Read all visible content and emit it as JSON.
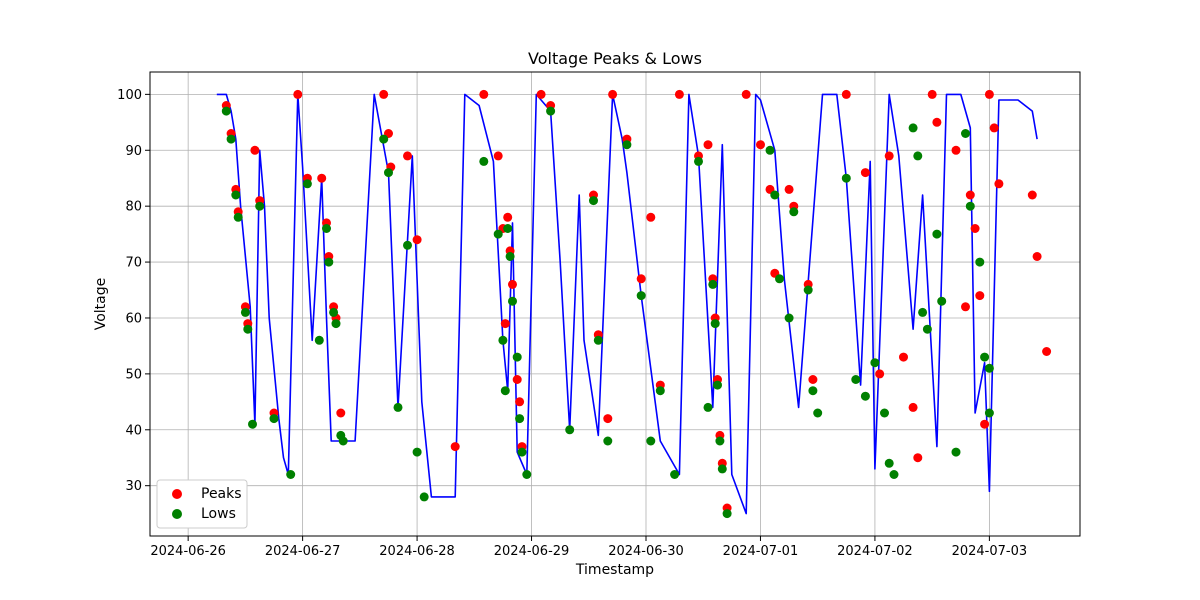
{
  "chart_data": {
    "type": "line",
    "title": "Voltage Peaks & Lows",
    "xlabel": "Timestamp",
    "ylabel": "Voltage",
    "xlim": [
      "2024-06-25T16:00",
      "2024-07-03T19:00"
    ],
    "ylim": [
      21,
      104
    ],
    "grid": true,
    "legend_position": "bottom-left",
    "x_ticks": [
      "2024-06-26",
      "2024-06-27",
      "2024-06-28",
      "2024-06-29",
      "2024-06-30",
      "2024-07-01",
      "2024-07-02",
      "2024-07-03"
    ],
    "y_ticks": [
      30,
      40,
      50,
      60,
      70,
      80,
      90,
      100
    ],
    "line": {
      "color": "#0000ff",
      "x": [
        "2024-06-26T06:00",
        "2024-06-26T08:00",
        "2024-06-26T09:00",
        "2024-06-26T10:00",
        "2024-06-26T11:00",
        "2024-06-26T13:00",
        "2024-06-26T14:00",
        "2024-06-26T15:00",
        "2024-06-26T16:00",
        "2024-06-26T17:00",
        "2024-06-26T19:00",
        "2024-06-26T20:00",
        "2024-06-26T21:00",
        "2024-06-26T23:00",
        "2024-06-27T00:00",
        "2024-06-27T02:00",
        "2024-06-27T04:00",
        "2024-06-27T05:00",
        "2024-06-27T06:00",
        "2024-06-27T08:00",
        "2024-06-27T11:00",
        "2024-06-27T15:00",
        "2024-06-27T18:00",
        "2024-06-27T20:00",
        "2024-06-27T23:00",
        "2024-06-28T01:00",
        "2024-06-28T03:00",
        "2024-06-28T08:00",
        "2024-06-28T10:00",
        "2024-06-28T13:00",
        "2024-06-28T16:00",
        "2024-06-28T18:00",
        "2024-06-28T19:00",
        "2024-06-28T20:00",
        "2024-06-28T21:00",
        "2024-06-28T23:00",
        "2024-06-29T01:00",
        "2024-06-29T04:00",
        "2024-06-29T06:00",
        "2024-06-29T07:00",
        "2024-06-29T08:00",
        "2024-06-29T10:00",
        "2024-06-29T11:00",
        "2024-06-29T14:00",
        "2024-06-29T17:00",
        "2024-06-29T19:00",
        "2024-06-29T20:00",
        "2024-06-29T23:00",
        "2024-06-30T03:00",
        "2024-06-30T07:00",
        "2024-06-30T09:00",
        "2024-06-30T11:00",
        "2024-06-30T14:00",
        "2024-06-30T16:00",
        "2024-06-30T18:00",
        "2024-06-30T21:00",
        "2024-06-30T23:00",
        "2024-07-01T00:00",
        "2024-07-01T03:00",
        "2024-07-01T05:00",
        "2024-07-01T08:00",
        "2024-07-01T13:00",
        "2024-07-01T16:00",
        "2024-07-01T18:00",
        "2024-07-01T21:00",
        "2024-07-01T23:00",
        "2024-07-02T00:00",
        "2024-07-02T03:00",
        "2024-07-02T05:00",
        "2024-07-02T08:00",
        "2024-07-02T10:00",
        "2024-07-02T13:00",
        "2024-07-02T15:00",
        "2024-07-02T18:00",
        "2024-07-02T20:00",
        "2024-07-02T21:00",
        "2024-07-02T23:00",
        "2024-07-03T00:00",
        "2024-07-03T02:00",
        "2024-07-03T06:00",
        "2024-07-03T09:00",
        "2024-07-03T10:00"
      ],
      "y": [
        100,
        100,
        97,
        92,
        80,
        62,
        41,
        90,
        80,
        60,
        42,
        35,
        32,
        100,
        87,
        56,
        85,
        60,
        38,
        38,
        38,
        100,
        86,
        44,
        89,
        45,
        28,
        28,
        100,
        98,
        88,
        56,
        47,
        77,
        36,
        32,
        100,
        97,
        70,
        55,
        40,
        82,
        56,
        39,
        100,
        92,
        86,
        64,
        38,
        32,
        100,
        89,
        44,
        91,
        32,
        25,
        100,
        99,
        90,
        67,
        44,
        100,
        100,
        85,
        48,
        88,
        33,
        100,
        89,
        58,
        82,
        37,
        100,
        100,
        94,
        43,
        52,
        29,
        99,
        99,
        97,
        92
      ]
    },
    "series": [
      {
        "name": "Peaks",
        "color": "#ff0000",
        "x": [
          "2024-06-26T08:00",
          "2024-06-26T09:00",
          "2024-06-26T10:00",
          "2024-06-26T10:30",
          "2024-06-26T12:00",
          "2024-06-26T12:30",
          "2024-06-26T14:00",
          "2024-06-26T15:00",
          "2024-06-26T18:00",
          "2024-06-26T23:00",
          "2024-06-27T01:00",
          "2024-06-27T04:00",
          "2024-06-27T05:00",
          "2024-06-27T05:30",
          "2024-06-27T06:30",
          "2024-06-27T07:00",
          "2024-06-27T08:00",
          "2024-06-27T17:00",
          "2024-06-27T18:00",
          "2024-06-27T18:30",
          "2024-06-27T22:00",
          "2024-06-28T00:00",
          "2024-06-28T08:00",
          "2024-06-28T14:00",
          "2024-06-28T17:00",
          "2024-06-28T18:00",
          "2024-06-28T18:30",
          "2024-06-28T19:00",
          "2024-06-28T19:30",
          "2024-06-28T20:00",
          "2024-06-28T21:00",
          "2024-06-28T21:30",
          "2024-06-28T22:00",
          "2024-06-29T02:00",
          "2024-06-29T04:00",
          "2024-06-29T13:00",
          "2024-06-29T14:00",
          "2024-06-29T16:00",
          "2024-06-29T17:00",
          "2024-06-29T20:00",
          "2024-06-29T23:00",
          "2024-06-30T01:00",
          "2024-06-30T03:00",
          "2024-06-30T07:00",
          "2024-06-30T11:00",
          "2024-06-30T13:00",
          "2024-06-30T14:00",
          "2024-06-30T14:30",
          "2024-06-30T15:00",
          "2024-06-30T15:30",
          "2024-06-30T16:00",
          "2024-06-30T17:00",
          "2024-06-30T21:00",
          "2024-07-01T00:00",
          "2024-07-01T02:00",
          "2024-07-01T03:00",
          "2024-07-01T06:00",
          "2024-07-01T07:00",
          "2024-07-01T10:00",
          "2024-07-01T11:00",
          "2024-07-01T18:00",
          "2024-07-01T22:00",
          "2024-07-02T01:00",
          "2024-07-02T03:00",
          "2024-07-02T06:00",
          "2024-07-02T08:00",
          "2024-07-02T09:00",
          "2024-07-02T12:00",
          "2024-07-02T13:00",
          "2024-07-02T17:00",
          "2024-07-02T19:00",
          "2024-07-02T20:00",
          "2024-07-02T21:00",
          "2024-07-02T22:00",
          "2024-07-02T23:00",
          "2024-07-03T00:00",
          "2024-07-03T01:00",
          "2024-07-03T02:00",
          "2024-07-03T09:00",
          "2024-07-03T10:00",
          "2024-07-03T12:00"
        ],
        "y": [
          98,
          93,
          83,
          79,
          62,
          59,
          90,
          81,
          43,
          100,
          85,
          85,
          77,
          71,
          62,
          60,
          43,
          100,
          93,
          87,
          89,
          74,
          37,
          100,
          89,
          76,
          59,
          78,
          72,
          66,
          49,
          45,
          37,
          100,
          98,
          82,
          57,
          42,
          100,
          92,
          67,
          78,
          48,
          100,
          89,
          91,
          67,
          60,
          49,
          39,
          34,
          26,
          100,
          91,
          83,
          68,
          83,
          80,
          66,
          49,
          100,
          86,
          50,
          89,
          53,
          44,
          35,
          100,
          95,
          90,
          62,
          82,
          76,
          64,
          41,
          100,
          94,
          84,
          82,
          71,
          54
        ]
      },
      {
        "name": "Lows",
        "color": "#008000",
        "x": [
          "2024-06-26T08:00",
          "2024-06-26T09:00",
          "2024-06-26T10:00",
          "2024-06-26T10:30",
          "2024-06-26T12:00",
          "2024-06-26T12:30",
          "2024-06-26T13:30",
          "2024-06-26T15:00",
          "2024-06-26T18:00",
          "2024-06-26T21:30",
          "2024-06-27T01:00",
          "2024-06-27T03:30",
          "2024-06-27T05:00",
          "2024-06-27T05:30",
          "2024-06-27T06:30",
          "2024-06-27T07:00",
          "2024-06-27T08:00",
          "2024-06-27T08:30",
          "2024-06-27T17:00",
          "2024-06-27T18:00",
          "2024-06-27T20:00",
          "2024-06-27T22:00",
          "2024-06-28T00:00",
          "2024-06-28T01:30",
          "2024-06-28T14:00",
          "2024-06-28T17:00",
          "2024-06-28T18:00",
          "2024-06-28T18:30",
          "2024-06-28T19:00",
          "2024-06-28T19:30",
          "2024-06-28T20:00",
          "2024-06-28T21:00",
          "2024-06-28T21:30",
          "2024-06-28T22:00",
          "2024-06-28T23:00",
          "2024-06-29T04:00",
          "2024-06-29T08:00",
          "2024-06-29T13:00",
          "2024-06-29T14:00",
          "2024-06-29T16:00",
          "2024-06-29T20:00",
          "2024-06-29T23:00",
          "2024-06-30T01:00",
          "2024-06-30T03:00",
          "2024-06-30T06:00",
          "2024-06-30T11:00",
          "2024-06-30T13:00",
          "2024-06-30T14:00",
          "2024-06-30T14:30",
          "2024-06-30T15:00",
          "2024-06-30T15:30",
          "2024-06-30T16:00",
          "2024-06-30T17:00",
          "2024-07-01T02:00",
          "2024-07-01T03:00",
          "2024-07-01T04:00",
          "2024-07-01T06:00",
          "2024-07-01T07:00",
          "2024-07-01T10:00",
          "2024-07-01T11:00",
          "2024-07-01T12:00",
          "2024-07-01T18:00",
          "2024-07-01T20:00",
          "2024-07-01T22:00",
          "2024-07-02T00:00",
          "2024-07-02T02:00",
          "2024-07-02T03:00",
          "2024-07-02T04:00",
          "2024-07-02T08:00",
          "2024-07-02T09:00",
          "2024-07-02T10:00",
          "2024-07-02T11:00",
          "2024-07-02T13:00",
          "2024-07-02T14:00",
          "2024-07-02T17:00",
          "2024-07-02T19:00",
          "2024-07-02T20:00",
          "2024-07-02T22:00",
          "2024-07-02T23:00",
          "2024-07-02T24:00",
          "2024-07-03T00:00"
        ],
        "y": [
          97,
          92,
          82,
          78,
          61,
          58,
          41,
          80,
          42,
          32,
          84,
          56,
          76,
          70,
          61,
          59,
          39,
          38,
          92,
          86,
          44,
          73,
          36,
          28,
          88,
          75,
          56,
          47,
          76,
          71,
          63,
          53,
          42,
          36,
          32,
          97,
          40,
          81,
          56,
          38,
          91,
          64,
          38,
          47,
          32,
          88,
          44,
          66,
          59,
          48,
          38,
          33,
          25,
          90,
          82,
          67,
          60,
          79,
          65,
          47,
          43,
          85,
          49,
          46,
          52,
          43,
          34,
          32,
          94,
          89,
          61,
          58,
          75,
          63,
          36,
          93,
          80,
          70,
          53,
          43,
          51
        ]
      }
    ],
    "legend": [
      "Peaks",
      "Lows"
    ]
  }
}
